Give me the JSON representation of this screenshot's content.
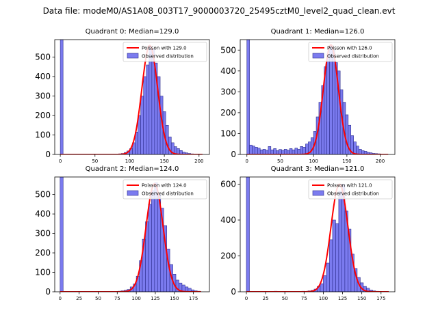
{
  "figure": {
    "suptitle": "Data file: modeM0/AS1A08_003T17_9000003720_25495cztM0_level2_quad_clean.evt"
  },
  "colors": {
    "bar_fill": "#7b7bef",
    "bar_edge": "#2b2b8c",
    "poisson_line": "#ff0000",
    "axis": "#000000",
    "background": "#ffffff"
  },
  "chart_data": [
    {
      "type": "bar",
      "title": "Quadrant 0: Median=129.0",
      "xlim": [
        -8,
        215
      ],
      "ylim": [
        0,
        590
      ],
      "xticks": [
        0,
        50,
        100,
        150,
        200
      ],
      "yticks": [
        0,
        100,
        200,
        300,
        400,
        500
      ],
      "zero_bin_value": 590,
      "bin_width": 4,
      "bins": [
        [
          80,
          2
        ],
        [
          84,
          3
        ],
        [
          88,
          5
        ],
        [
          92,
          10
        ],
        [
          96,
          18
        ],
        [
          100,
          30
        ],
        [
          104,
          60
        ],
        [
          108,
          115
        ],
        [
          112,
          200
        ],
        [
          116,
          300
        ],
        [
          120,
          400
        ],
        [
          124,
          460
        ],
        [
          128,
          555
        ],
        [
          132,
          540
        ],
        [
          136,
          470
        ],
        [
          140,
          400
        ],
        [
          144,
          300
        ],
        [
          148,
          220
        ],
        [
          152,
          150
        ],
        [
          156,
          90
        ],
        [
          160,
          60
        ],
        [
          164,
          40
        ],
        [
          168,
          30
        ],
        [
          172,
          20
        ],
        [
          176,
          12
        ],
        [
          180,
          8
        ],
        [
          184,
          5
        ],
        [
          188,
          3
        ],
        [
          192,
          2
        ]
      ],
      "poisson_mean": 129.0,
      "poisson_curve": {
        "x_start": 0,
        "x_end": 205,
        "peak": 560
      },
      "legend": [
        "Poisson with 129.0",
        "Observed distribution"
      ]
    },
    {
      "type": "bar",
      "title": "Quadrant 1: Median=126.0",
      "xlim": [
        -10,
        222
      ],
      "ylim": [
        0,
        550
      ],
      "xticks": [
        0,
        50,
        100,
        150,
        200
      ],
      "yticks": [
        0,
        100,
        200,
        300,
        400,
        500
      ],
      "zero_bin_value": 550,
      "bin_width": 4,
      "bins": [
        [
          4,
          45
        ],
        [
          8,
          40
        ],
        [
          12,
          35
        ],
        [
          16,
          30
        ],
        [
          20,
          22
        ],
        [
          24,
          25
        ],
        [
          28,
          20
        ],
        [
          32,
          38
        ],
        [
          36,
          22
        ],
        [
          40,
          28
        ],
        [
          44,
          18
        ],
        [
          48,
          24
        ],
        [
          52,
          20
        ],
        [
          56,
          25
        ],
        [
          60,
          20
        ],
        [
          64,
          28
        ],
        [
          68,
          22
        ],
        [
          72,
          30
        ],
        [
          76,
          25
        ],
        [
          80,
          38
        ],
        [
          84,
          35
        ],
        [
          88,
          50
        ],
        [
          92,
          60
        ],
        [
          96,
          80
        ],
        [
          100,
          110
        ],
        [
          104,
          180
        ],
        [
          108,
          250
        ],
        [
          112,
          330
        ],
        [
          116,
          420
        ],
        [
          120,
          480
        ],
        [
          124,
          520
        ],
        [
          128,
          500
        ],
        [
          132,
          440
        ],
        [
          136,
          400
        ],
        [
          140,
          310
        ],
        [
          144,
          250
        ],
        [
          148,
          190
        ],
        [
          152,
          140
        ],
        [
          156,
          90
        ],
        [
          160,
          60
        ],
        [
          164,
          40
        ],
        [
          168,
          25
        ],
        [
          172,
          18
        ],
        [
          176,
          15
        ],
        [
          180,
          10
        ],
        [
          184,
          8
        ],
        [
          188,
          5
        ],
        [
          192,
          4
        ],
        [
          196,
          3
        ],
        [
          200,
          2
        ],
        [
          204,
          2
        ]
      ],
      "poisson_mean": 126.0,
      "poisson_curve": {
        "x_start": 0,
        "x_end": 212,
        "peak": 525
      },
      "legend": [
        "Poisson with 126.0",
        "Observed distribution"
      ]
    },
    {
      "type": "bar",
      "title": "Quadrant 2: Median=124.0",
      "xlim": [
        -7,
        196
      ],
      "ylim": [
        0,
        590
      ],
      "xticks": [
        0,
        25,
        50,
        75,
        100,
        125,
        150,
        175
      ],
      "yticks": [
        0,
        100,
        200,
        300,
        400,
        500
      ],
      "zero_bin_value": 590,
      "bin_width": 4,
      "bins": [
        [
          76,
          3
        ],
        [
          80,
          5
        ],
        [
          84,
          8
        ],
        [
          88,
          12
        ],
        [
          92,
          25
        ],
        [
          96,
          40
        ],
        [
          100,
          80
        ],
        [
          104,
          160
        ],
        [
          108,
          270
        ],
        [
          112,
          360
        ],
        [
          116,
          450
        ],
        [
          120,
          520
        ],
        [
          124,
          560
        ],
        [
          128,
          500
        ],
        [
          132,
          430
        ],
        [
          136,
          340
        ],
        [
          140,
          220
        ],
        [
          144,
          140
        ],
        [
          148,
          90
        ],
        [
          152,
          60
        ],
        [
          156,
          45
        ],
        [
          160,
          35
        ],
        [
          164,
          25
        ],
        [
          168,
          18
        ],
        [
          172,
          10
        ],
        [
          176,
          5
        ],
        [
          180,
          3
        ]
      ],
      "poisson_mean": 124.0,
      "poisson_curve": {
        "x_start": 0,
        "x_end": 185,
        "peak": 555
      },
      "legend": [
        "Poisson with 124.0",
        "Observed distribution"
      ]
    },
    {
      "type": "bar",
      "title": "Quadrant 3: Median=121.0",
      "xlim": [
        -8,
        193
      ],
      "ylim": [
        0,
        640
      ],
      "xticks": [
        0,
        25,
        50,
        75,
        100,
        125,
        150,
        175
      ],
      "yticks": [
        0,
        200,
        400,
        600
      ],
      "zero_bin_value": 640,
      "bin_width": 4,
      "bins": [
        [
          20,
          2
        ],
        [
          36,
          3
        ],
        [
          56,
          2
        ],
        [
          72,
          3
        ],
        [
          80,
          5
        ],
        [
          84,
          8
        ],
        [
          88,
          15
        ],
        [
          92,
          30
        ],
        [
          96,
          45
        ],
        [
          100,
          90
        ],
        [
          104,
          160
        ],
        [
          108,
          290
        ],
        [
          112,
          400
        ],
        [
          116,
          380
        ],
        [
          120,
          560
        ],
        [
          124,
          600
        ],
        [
          128,
          450
        ],
        [
          132,
          350
        ],
        [
          136,
          210
        ],
        [
          140,
          130
        ],
        [
          144,
          80
        ],
        [
          148,
          50
        ],
        [
          152,
          30
        ],
        [
          156,
          20
        ],
        [
          160,
          10
        ],
        [
          164,
          5
        ],
        [
          168,
          3
        ]
      ],
      "poisson_mean": 121.0,
      "poisson_curve": {
        "x_start": 0,
        "x_end": 185,
        "peak": 600
      },
      "legend": [
        "Poisson with 121.0",
        "Observed distribution"
      ]
    }
  ]
}
